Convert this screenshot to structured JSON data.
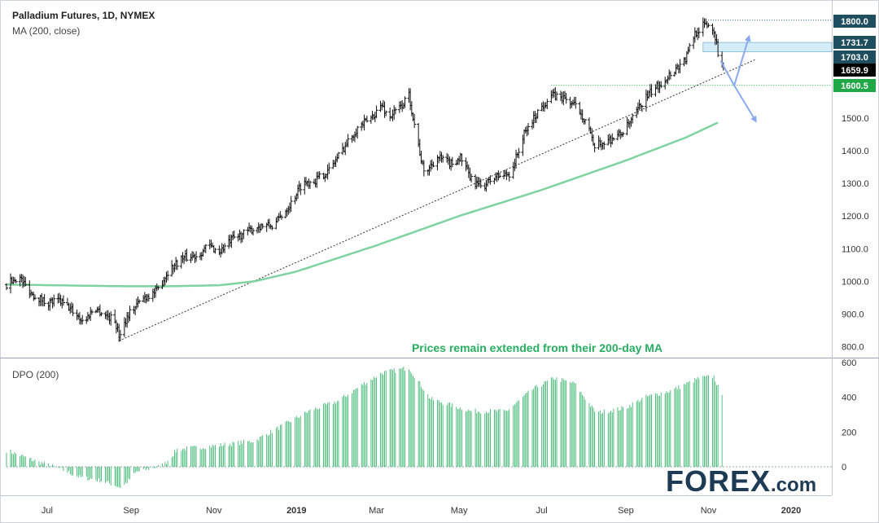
{
  "header": {
    "instrument": "Palladium Futures, 1D, NYMEX",
    "ma_label": "MA (200, close)",
    "dpo_label": "DPO (200)"
  },
  "annotation": "Prices remain extended from their 200-day MA",
  "logo": {
    "main": "FOREX",
    "suffix": ".com"
  },
  "colors": {
    "ma": "#7fd3a1",
    "dpo": "#27ae60",
    "candle": "#111111",
    "arrow": "#8aaaf0",
    "zone": "#d4ecf7",
    "price_label_dark": "#1f4e5f",
    "support_label": "#1fa845",
    "last_price_label": "#000000"
  },
  "chart_data": [
    {
      "type": "line",
      "title": "Palladium Futures, 1D, NYMEX",
      "x_tick_labels": [
        "Jul",
        "Sep",
        "Nov",
        "2019",
        "Mar",
        "May",
        "Jul",
        "Sep",
        "Nov",
        "2020"
      ],
      "y_tick_labels": [
        "800.0",
        "900.0",
        "1000.0",
        "1100.0",
        "1200.0",
        "1300.0",
        "1400.0",
        "1500.0"
      ],
      "ylim": [
        770,
        1810
      ],
      "price_labels": [
        {
          "label": "1800.0",
          "value": 1800.0,
          "style": "dark"
        },
        {
          "label": "1731.7",
          "value": 1731.7,
          "style": "dark"
        },
        {
          "label": "1703.0",
          "value": 1703.0,
          "style": "dark"
        },
        {
          "label": "1659.9",
          "value": 1659.9,
          "style": "last"
        },
        {
          "label": "1600.5",
          "value": 1600.5,
          "style": "support"
        }
      ],
      "price_anchors": [
        [
          "2018-06-01",
          990
        ],
        [
          "2018-06-10",
          1015
        ],
        [
          "2018-06-20",
          960
        ],
        [
          "2018-07-01",
          935
        ],
        [
          "2018-07-10",
          940
        ],
        [
          "2018-07-20",
          910
        ],
        [
          "2018-07-28",
          875
        ],
        [
          "2018-08-05",
          920
        ],
        [
          "2018-08-12",
          900
        ],
        [
          "2018-08-20",
          880
        ],
        [
          "2018-08-23",
          835
        ],
        [
          "2018-08-30",
          900
        ],
        [
          "2018-09-10",
          950
        ],
        [
          "2018-09-20",
          970
        ],
        [
          "2018-09-28",
          1030
        ],
        [
          "2018-10-08",
          1070
        ],
        [
          "2018-10-20",
          1080
        ],
        [
          "2018-10-28",
          1110
        ],
        [
          "2018-11-05",
          1090
        ],
        [
          "2018-11-15",
          1130
        ],
        [
          "2018-11-25",
          1150
        ],
        [
          "2018-12-05",
          1170
        ],
        [
          "2018-12-15",
          1170
        ],
        [
          "2018-12-28",
          1240
        ],
        [
          "2019-01-05",
          1300
        ],
        [
          "2019-01-15",
          1310
        ],
        [
          "2019-01-25",
          1340
        ],
        [
          "2019-02-05",
          1410
        ],
        [
          "2019-02-15",
          1470
        ],
        [
          "2019-02-25",
          1500
        ],
        [
          "2019-03-05",
          1540
        ],
        [
          "2019-03-10",
          1500
        ],
        [
          "2019-03-20",
          1540
        ],
        [
          "2019-03-25",
          1570
        ],
        [
          "2019-03-30",
          1460
        ],
        [
          "2019-04-05",
          1330
        ],
        [
          "2019-04-15",
          1380
        ],
        [
          "2019-04-25",
          1360
        ],
        [
          "2019-05-02",
          1380
        ],
        [
          "2019-05-10",
          1310
        ],
        [
          "2019-05-18",
          1290
        ],
        [
          "2019-05-28",
          1320
        ],
        [
          "2019-06-08",
          1330
        ],
        [
          "2019-06-18",
          1450
        ],
        [
          "2019-06-28",
          1520
        ],
        [
          "2019-07-08",
          1570
        ],
        [
          "2019-07-18",
          1560
        ],
        [
          "2019-07-28",
          1530
        ],
        [
          "2019-08-05",
          1470
        ],
        [
          "2019-08-08",
          1410
        ],
        [
          "2019-08-18",
          1430
        ],
        [
          "2019-08-28",
          1450
        ],
        [
          "2019-09-05",
          1490
        ],
        [
          "2019-09-15",
          1560
        ],
        [
          "2019-09-25",
          1600
        ],
        [
          "2019-10-05",
          1640
        ],
        [
          "2019-10-15",
          1680
        ],
        [
          "2019-10-22",
          1760
        ],
        [
          "2019-10-30",
          1790
        ],
        [
          "2019-11-05",
          1770
        ],
        [
          "2019-11-08",
          1700
        ],
        [
          "2019-11-12",
          1660
        ]
      ],
      "moving_average_200": [
        [
          "2018-06-01",
          990
        ],
        [
          "2018-08-25",
          985
        ],
        [
          "2018-10-01",
          985
        ],
        [
          "2018-11-05",
          988
        ],
        [
          "2018-12-01",
          1000
        ],
        [
          "2019-01-01",
          1030
        ],
        [
          "2019-03-01",
          1110
        ],
        [
          "2019-05-01",
          1200
        ],
        [
          "2019-07-01",
          1280
        ],
        [
          "2019-09-01",
          1370
        ],
        [
          "2019-10-15",
          1440
        ],
        [
          "2019-11-10",
          1490
        ]
      ],
      "trendline": [
        [
          "2018-08-23",
          818
        ],
        [
          "2019-12-06",
          1680
        ]
      ],
      "levels": [
        {
          "value": 1800.0,
          "from": "2019-10-30"
        },
        {
          "value": 1600.5,
          "from": "2019-07-08"
        }
      ],
      "zone": {
        "from_value": 1703.0,
        "to_value": 1731.7,
        "from_date": "2019-10-28"
      },
      "scenario_arrows": [
        [
          [
            "2019-11-10",
            1675
          ],
          [
            "2019-11-20",
            1600
          ],
          [
            "2019-12-01",
            1750
          ]
        ],
        [
          [
            "2019-11-20",
            1600
          ],
          [
            "2019-12-06",
            1490
          ]
        ]
      ]
    },
    {
      "type": "bar",
      "title": "DPO (200)",
      "y_tick_labels": [
        "0",
        "200",
        "400",
        "600"
      ],
      "ylim": [
        -120,
        610
      ],
      "dpo_anchors": [
        [
          "2018-06-01",
          95
        ],
        [
          "2018-06-20",
          40
        ],
        [
          "2018-07-10",
          -10
        ],
        [
          "2018-07-25",
          -60
        ],
        [
          "2018-08-10",
          -80
        ],
        [
          "2018-08-25",
          -120
        ],
        [
          "2018-09-05",
          -30
        ],
        [
          "2018-09-25",
          10
        ],
        [
          "2018-10-05",
          100
        ],
        [
          "2018-11-01",
          120
        ],
        [
          "2018-12-01",
          150
        ],
        [
          "2018-12-20",
          230
        ],
        [
          "2019-01-10",
          320
        ],
        [
          "2019-02-01",
          380
        ],
        [
          "2019-02-20",
          480
        ],
        [
          "2019-03-05",
          540
        ],
        [
          "2019-03-25",
          570
        ],
        [
          "2019-04-10",
          390
        ],
        [
          "2019-05-10",
          320
        ],
        [
          "2019-06-05",
          320
        ],
        [
          "2019-06-25",
          450
        ],
        [
          "2019-07-10",
          510
        ],
        [
          "2019-07-25",
          480
        ],
        [
          "2019-08-10",
          310
        ],
        [
          "2019-09-01",
          340
        ],
        [
          "2019-09-15",
          400
        ],
        [
          "2019-10-05",
          440
        ],
        [
          "2019-10-25",
          510
        ],
        [
          "2019-11-05",
          520
        ],
        [
          "2019-11-11",
          400
        ]
      ]
    }
  ]
}
